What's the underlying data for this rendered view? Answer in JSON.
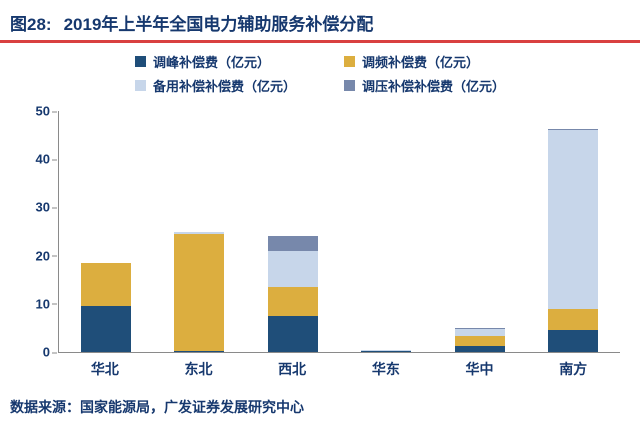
{
  "header": {
    "figure_label": "图28:",
    "title": "2019年上半年全国电力辅助服务补偿分配"
  },
  "footer": {
    "source": "数据来源：国家能源局，广发证券发展研究中心"
  },
  "colors": {
    "accent_red": "#D94040",
    "text_navy": "#16386E",
    "axis_gray": "#8a8a8a"
  },
  "chart_data": {
    "type": "bar",
    "stacked": true,
    "title": "2019年上半年全国电力辅助服务补偿分配",
    "categories": [
      "华北",
      "东北",
      "西北",
      "华东",
      "华中",
      "南方"
    ],
    "series": [
      {
        "name": "调峰补偿费（亿元）",
        "color": "#1F4E79",
        "values": [
          9.5,
          0.3,
          7.5,
          0.2,
          1.2,
          4.5
        ]
      },
      {
        "name": "调频补偿费（亿元）",
        "color": "#DCAE3F",
        "values": [
          9.0,
          24.2,
          6.0,
          0.1,
          2.2,
          4.5
        ]
      },
      {
        "name": "备用补偿补偿费（亿元）",
        "color": "#C7D6EA",
        "values": [
          0.0,
          0.5,
          7.5,
          0.1,
          1.3,
          37.0
        ]
      },
      {
        "name": "调压补偿补偿费（亿元）",
        "color": "#7788AB",
        "values": [
          0.0,
          0.0,
          3.0,
          0.1,
          0.3,
          0.3
        ]
      }
    ],
    "xlabel": "",
    "ylabel": "亿元",
    "ylim": [
      0,
      50
    ],
    "yticks": [
      0,
      10,
      20,
      30,
      40,
      50
    ],
    "grid": false,
    "legend_position": "top"
  }
}
